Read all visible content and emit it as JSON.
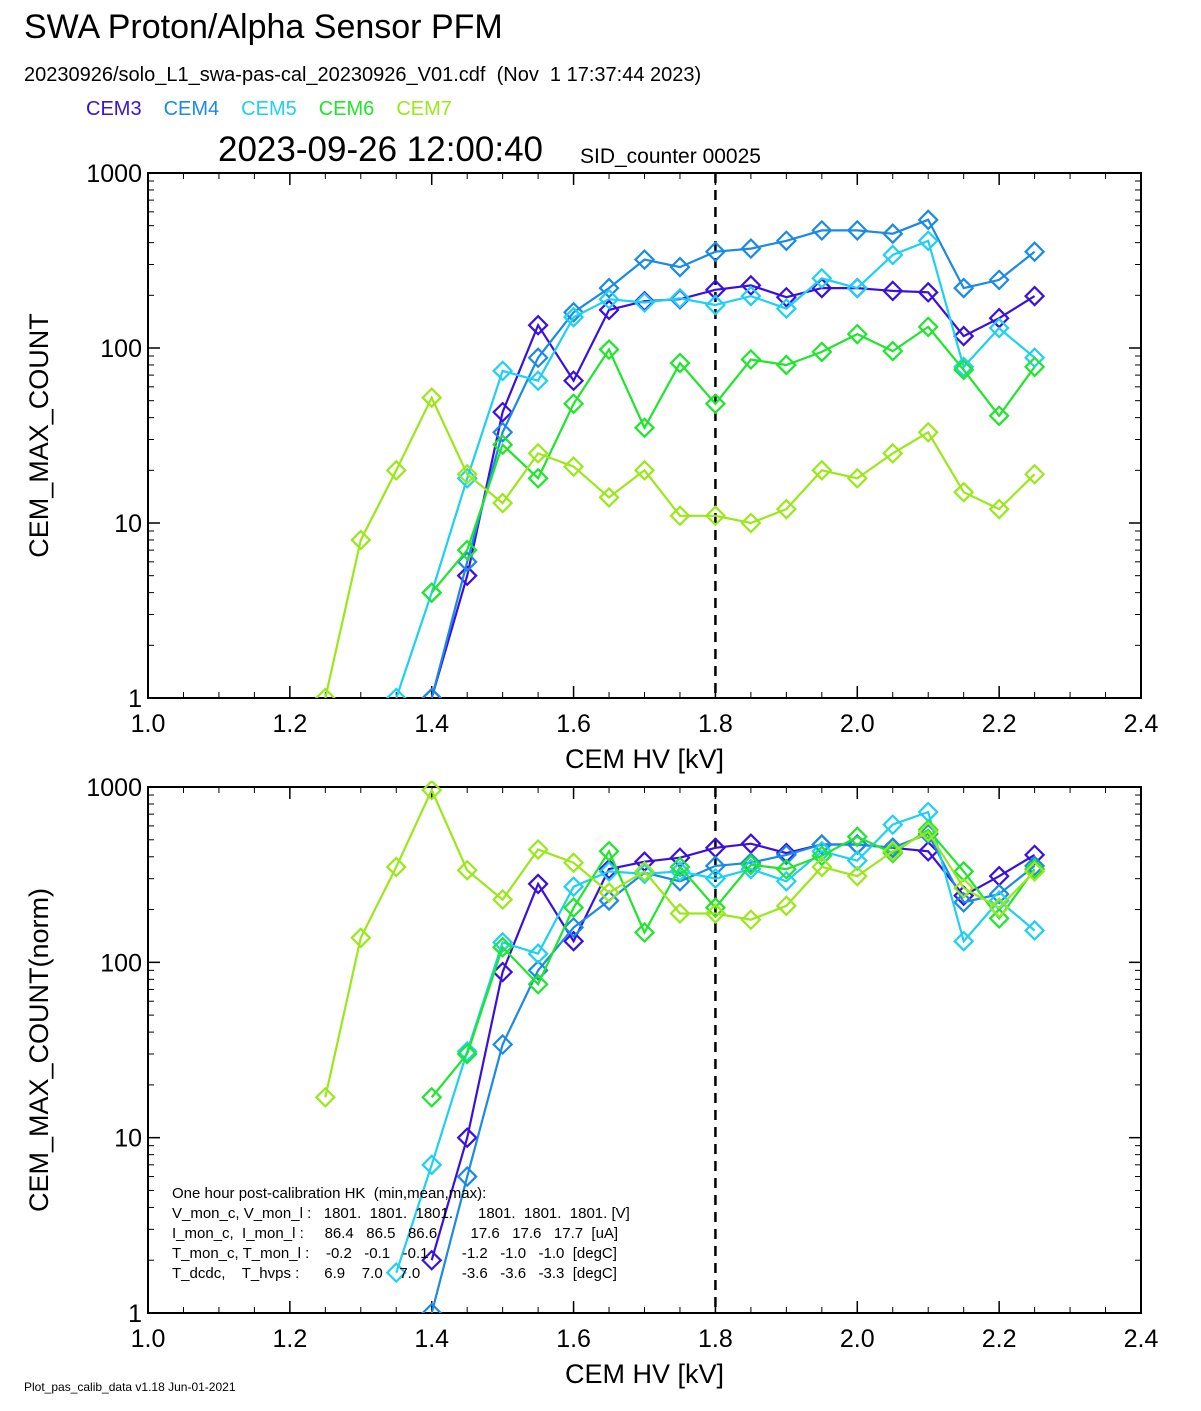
{
  "header": {
    "title": "SWA Proton/Alpha Sensor PFM",
    "file_line": "20230926/solo_L1_swa-pas-cal_20230926_V01.cdf  (Nov  1 17:37:44 2023)",
    "datetime": "2023-09-26 12:00:40",
    "sid_counter": "SID_counter 00025"
  },
  "legend": [
    {
      "name": "CEM3",
      "color": "#3a10e0"
    },
    {
      "name": "CEM4",
      "color": "#1a8ae6"
    },
    {
      "name": "CEM5",
      "color": "#1ed0f2"
    },
    {
      "name": "CEM6",
      "color": "#1ee62a"
    },
    {
      "name": "CEM7",
      "color": "#9ae81a"
    }
  ],
  "hk_box": {
    "lines": [
      "One hour post-calibration HK  (min,mean,max):",
      "V_mon_c, V_mon_l :   1801.  1801.  1801.      1801.  1801.  1801. [V]",
      "I_mon_c,  I_mon_l :     86.4   86.5   86.6        17.6   17.6   17.7  [uA]",
      "T_mon_c, T_mon_l :    -0.2   -0.1   -0.1        -1.2   -1.0   -1.0  [degC]",
      "T_dcdc,    T_hvps :      6.9    7.0    7.0          -3.6   -3.6   -3.3  [degC]"
    ]
  },
  "footer": "Plot_pas_calib_data v1.18 Jun-01-2021",
  "chart_data": [
    {
      "type": "line",
      "xlabel": "CEM HV [kV]",
      "ylabel": "CEM_MAX_COUNT",
      "xlim": [
        1.0,
        2.4
      ],
      "ylim": [
        1,
        1000
      ],
      "y_scale": "log",
      "x_ticks": [
        "1.0",
        "1.2",
        "1.4",
        "1.6",
        "1.8",
        "2.0",
        "2.2",
        "2.4"
      ],
      "y_ticks": [
        "1",
        "10",
        "100",
        "1000"
      ],
      "vline_x": 1.8,
      "series": [
        {
          "name": "CEM3",
          "color": "#3a10e0",
          "x": [
            1.4,
            1.45,
            1.5,
            1.55,
            1.6,
            1.65,
            1.7,
            1.75,
            1.8,
            1.85,
            1.9,
            1.95,
            2.0,
            2.05,
            2.1,
            2.15,
            2.2,
            2.25
          ],
          "y": [
            1,
            5,
            43,
            135,
            65,
            165,
            185,
            190,
            215,
            228,
            195,
            220,
            220,
            212,
            208,
            117,
            148,
            198
          ]
        },
        {
          "name": "CEM4",
          "color": "#1a8ae6",
          "x": [
            1.4,
            1.45,
            1.5,
            1.55,
            1.6,
            1.65,
            1.7,
            1.75,
            1.8,
            1.85,
            1.9,
            1.95,
            2.0,
            2.05,
            2.1,
            2.15,
            2.2,
            2.25
          ],
          "y": [
            1,
            6,
            33,
            88,
            160,
            220,
            320,
            290,
            355,
            370,
            410,
            470,
            470,
            450,
            540,
            220,
            245,
            355
          ]
        },
        {
          "name": "CEM5",
          "color": "#1ed0f2",
          "x": [
            1.35,
            1.4,
            1.45,
            1.5,
            1.55,
            1.6,
            1.65,
            1.7,
            1.75,
            1.8,
            1.85,
            1.9,
            1.95,
            2.0,
            2.05,
            2.1,
            2.15,
            2.2,
            2.25
          ],
          "y": [
            1,
            4,
            18,
            74,
            65,
            150,
            190,
            182,
            192,
            176,
            198,
            168,
            250,
            220,
            340,
            410,
            78,
            130,
            88
          ]
        },
        {
          "name": "CEM6",
          "color": "#1ee62a",
          "x": [
            1.4,
            1.45,
            1.5,
            1.55,
            1.6,
            1.65,
            1.7,
            1.75,
            1.8,
            1.85,
            1.9,
            1.95,
            2.0,
            2.05,
            2.1,
            2.15,
            2.2,
            2.25
          ],
          "y": [
            4,
            7,
            28,
            18,
            48,
            98,
            35,
            82,
            48,
            86,
            80,
            95,
            120,
            96,
            132,
            75,
            41,
            78
          ]
        },
        {
          "name": "CEM7",
          "color": "#9ae81a",
          "x": [
            1.25,
            1.3,
            1.35,
            1.4,
            1.45,
            1.5,
            1.55,
            1.6,
            1.65,
            1.7,
            1.75,
            1.8,
            1.85,
            1.9,
            1.95,
            2.0,
            2.05,
            2.1,
            2.15,
            2.2,
            2.25
          ],
          "y": [
            1,
            8,
            20,
            52,
            19,
            13,
            25,
            21,
            14,
            20,
            11,
            11,
            10,
            12,
            20,
            18,
            25,
            33,
            15,
            12,
            19
          ]
        }
      ]
    },
    {
      "type": "line",
      "xlabel": "CEM HV [kV]",
      "ylabel": "CEM_MAX_COUNT(norm)",
      "xlim": [
        1.0,
        2.4
      ],
      "ylim": [
        1,
        1000
      ],
      "y_scale": "log",
      "x_ticks": [
        "1.0",
        "1.2",
        "1.4",
        "1.6",
        "1.8",
        "2.0",
        "2.2",
        "2.4"
      ],
      "y_ticks": [
        "1",
        "10",
        "100",
        "1000"
      ],
      "vline_x": 1.8,
      "series": [
        {
          "name": "CEM3",
          "color": "#3a10e0",
          "x": [
            1.4,
            1.45,
            1.5,
            1.55,
            1.6,
            1.65,
            1.7,
            1.75,
            1.8,
            1.85,
            1.9,
            1.95,
            2.0,
            2.05,
            2.1,
            2.15,
            2.2,
            2.25
          ],
          "y": [
            2,
            10,
            88,
            280,
            132,
            340,
            375,
            395,
            450,
            475,
            420,
            470,
            470,
            450,
            430,
            240,
            310,
            410
          ]
        },
        {
          "name": "CEM4",
          "color": "#1a8ae6",
          "x": [
            1.4,
            1.45,
            1.5,
            1.55,
            1.6,
            1.65,
            1.7,
            1.75,
            1.8,
            1.85,
            1.9,
            1.95,
            2.0,
            2.05,
            2.1,
            2.15,
            2.2,
            2.25
          ],
          "y": [
            1,
            6,
            34,
            90,
            158,
            225,
            325,
            290,
            355,
            370,
            410,
            470,
            470,
            450,
            540,
            220,
            245,
            355
          ]
        },
        {
          "name": "CEM5",
          "color": "#1ed0f2",
          "x": [
            1.35,
            1.4,
            1.45,
            1.5,
            1.55,
            1.6,
            1.65,
            1.7,
            1.75,
            1.8,
            1.85,
            1.9,
            1.95,
            2.0,
            2.05,
            2.1,
            2.15,
            2.2,
            2.25
          ],
          "y": [
            1.7,
            7,
            31,
            130,
            112,
            270,
            330,
            320,
            330,
            300,
            340,
            290,
            430,
            380,
            610,
            720,
            132,
            225,
            152
          ]
        },
        {
          "name": "CEM6",
          "color": "#1ee62a",
          "x": [
            1.4,
            1.45,
            1.5,
            1.55,
            1.6,
            1.65,
            1.7,
            1.75,
            1.8,
            1.85,
            1.9,
            1.95,
            2.0,
            2.05,
            2.1,
            2.15,
            2.2,
            2.25
          ],
          "y": [
            17,
            30,
            122,
            75,
            205,
            430,
            148,
            350,
            205,
            360,
            340,
            405,
            520,
            420,
            570,
            330,
            178,
            340
          ]
        },
        {
          "name": "CEM7",
          "color": "#9ae81a",
          "x": [
            1.25,
            1.3,
            1.35,
            1.4,
            1.45,
            1.5,
            1.55,
            1.6,
            1.65,
            1.7,
            1.75,
            1.8,
            1.85,
            1.9,
            1.95,
            2.0,
            2.05,
            2.1,
            2.15,
            2.2,
            2.25
          ],
          "y": [
            17,
            138,
            350,
            960,
            335,
            228,
            440,
            370,
            250,
            330,
            190,
            190,
            175,
            210,
            350,
            310,
            430,
            555,
            265,
            205,
            330
          ]
        }
      ]
    }
  ]
}
